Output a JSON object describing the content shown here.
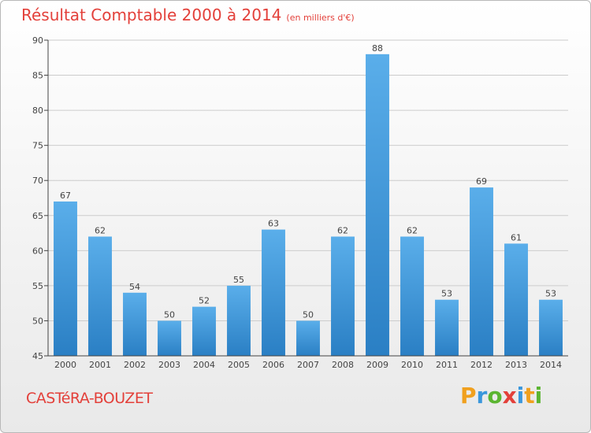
{
  "chart_data": {
    "type": "bar",
    "title": "Résultat Comptable 2000 à 2014",
    "subtitle": "(en milliers d'€)",
    "categories": [
      "2000",
      "2001",
      "2002",
      "2003",
      "2004",
      "2005",
      "2006",
      "2007",
      "2008",
      "2009",
      "2010",
      "2011",
      "2012",
      "2013",
      "2014"
    ],
    "values": [
      67,
      62,
      54,
      50,
      52,
      55,
      63,
      50,
      62,
      88,
      62,
      53,
      69,
      61,
      53
    ],
    "yticks": [
      45,
      50,
      55,
      60,
      65,
      70,
      75,
      80,
      85,
      90
    ],
    "ylim": [
      45,
      90
    ],
    "xlabel": "",
    "ylabel": "",
    "grid": true,
    "bar_color": "#3a97dc"
  },
  "footer": {
    "commune": "CASTéRA-BOUZET",
    "brand": "Proxiti",
    "brand_letters": [
      "P",
      "r",
      "o",
      "x",
      "i",
      "t",
      "i"
    ],
    "brand_colors": [
      "#f0a01e",
      "#3a97dc",
      "#5bb531",
      "#e3403a",
      "#3a97dc",
      "#f0a01e",
      "#5bb531"
    ]
  },
  "colors": {
    "title": "#e3403a",
    "text": "#444444",
    "grid": "#cccccc"
  }
}
